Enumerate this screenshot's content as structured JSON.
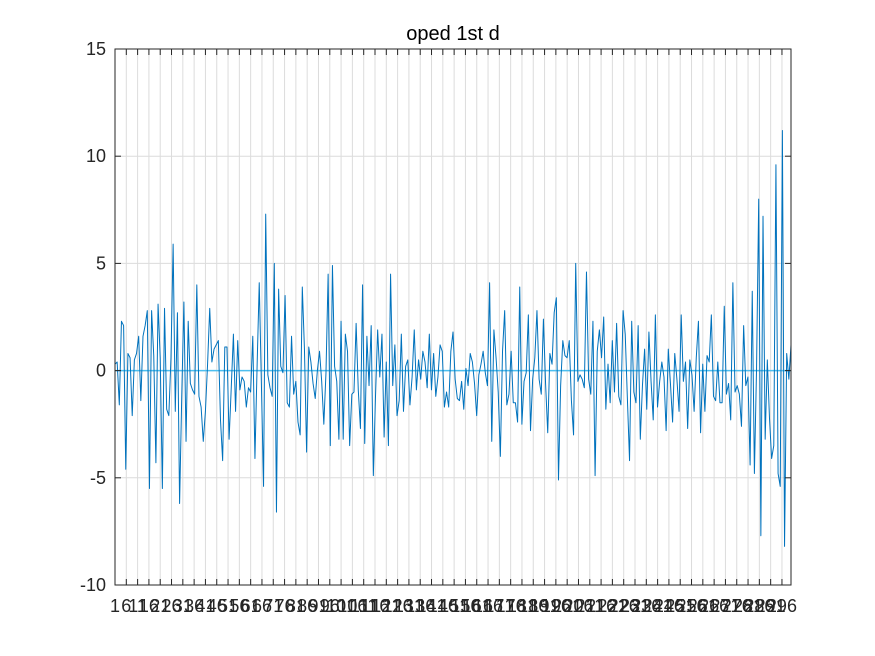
{
  "chart_data": {
    "type": "line",
    "title": "oped 1st d",
    "xlabel": "",
    "ylabel": "",
    "ylim": [
      -10,
      15
    ],
    "yticks": [
      -10,
      -5,
      0,
      5,
      10,
      15
    ],
    "xlim": [
      1,
      300
    ],
    "grid": true,
    "line_color": "#0072BD",
    "reference_line": {
      "y": 0,
      "color": "#4DBEEE"
    },
    "xtick_labels": [
      "1",
      "6",
      "11",
      "16",
      "21",
      "26",
      "31",
      "36",
      "41",
      "46",
      "51",
      "56",
      "61",
      "66",
      "71",
      "76",
      "81",
      "86",
      "91",
      "96",
      "101",
      "106",
      "111",
      "116",
      "121",
      "126",
      "131",
      "136",
      "141",
      "146",
      "151",
      "156",
      "161",
      "166",
      "171",
      "176",
      "181",
      "186",
      "191",
      "196",
      "201",
      "206",
      "211",
      "216",
      "221",
      "226",
      "231",
      "236",
      "241",
      "246",
      "251",
      "256",
      "261",
      "266",
      "271",
      "276",
      "281",
      "286",
      "291",
      "296"
    ],
    "series": [
      {
        "values": [
          0.3,
          0.4,
          -1.6,
          2.3,
          2.1,
          -4.6,
          0.8,
          0.6,
          -2.1,
          0.5,
          0.8,
          1.6,
          -1.4,
          1.6,
          2.1,
          2.8,
          -5.5,
          2.8,
          0.7,
          -4.3,
          3.1,
          0.6,
          -5.5,
          2.9,
          -1.8,
          -2.1,
          0.6,
          5.9,
          -1.9,
          2.7,
          -6.2,
          -1.2,
          3.2,
          -3.3,
          2.3,
          -0.6,
          -0.9,
          -1.1,
          4.0,
          -1.2,
          -1.7,
          -3.3,
          -1.9,
          0.3,
          2.9,
          0.4,
          1.0,
          1.2,
          1.4,
          -2.3,
          -4.2,
          1.1,
          1.1,
          -3.2,
          -0.8,
          1.7,
          -1.9,
          1.4,
          -0.9,
          -0.3,
          -0.5,
          -1.7,
          -0.8,
          -1.0,
          1.6,
          -4.1,
          0.2,
          4.1,
          -0.6,
          -5.4,
          7.3,
          -0.2,
          -0.8,
          -1.2,
          5.0,
          -6.6,
          3.8,
          0.2,
          -0.1,
          3.5,
          -1.5,
          -1.7,
          1.6,
          -1.1,
          -0.5,
          -2.4,
          -3.0,
          3.9,
          1.0,
          -3.8,
          1.1,
          0.4,
          -0.6,
          -1.3,
          0.0,
          0.9,
          -0.5,
          -2.5,
          -0.1,
          4.5,
          -3.5,
          4.9,
          0.2,
          -0.5,
          -3.2,
          2.3,
          -3.2,
          1.7,
          0.9,
          -3.5,
          -1.1,
          -1.0,
          2.2,
          -0.9,
          -2.7,
          4.0,
          -3.4,
          1.6,
          -0.7,
          2.1,
          -4.9,
          -1.2,
          1.9,
          -0.3,
          1.7,
          -3.1,
          0.4,
          -3.5,
          4.5,
          -0.7,
          1.2,
          -2.1,
          -1.4,
          1.7,
          -1.9,
          0.2,
          0.5,
          -1.6,
          -0.3,
          1.9,
          -0.9,
          0.5,
          -0.4,
          0.9,
          0.4,
          -0.8,
          1.7,
          -0.9,
          0.8,
          -1.2,
          -0.3,
          1.2,
          0.9,
          -1.7,
          -1.0,
          -1.7,
          0.9,
          1.8,
          -0.4,
          -1.3,
          -1.4,
          -0.5,
          -1.8,
          0.1,
          -0.7,
          0.8,
          0.4,
          -0.6,
          -2.1,
          -0.2,
          0.3,
          0.9,
          -0.1,
          -0.7,
          4.1,
          -3.3,
          1.9,
          0.6,
          -1.0,
          -4.0,
          0.9,
          2.8,
          -1.6,
          -1.1,
          0.9,
          -1.5,
          -1.5,
          -2.4,
          3.9,
          -2.5,
          -0.5,
          -0.1,
          2.6,
          -2.8,
          -0.4,
          0.6,
          2.8,
          -0.4,
          -1.1,
          2.4,
          -0.6,
          -2.9,
          0.8,
          0.3,
          2.7,
          3.4,
          -5.1,
          -0.7,
          1.4,
          0.7,
          0.6,
          1.4,
          -1.4,
          -3.0,
          5.0,
          -0.5,
          -0.2,
          -0.4,
          -0.8,
          4.6,
          -0.4,
          -1.1,
          2.3,
          -4.9,
          0.9,
          1.9,
          0.6,
          2.5,
          -1.8,
          0.3,
          -1.5,
          1.4,
          -1.0,
          2.2,
          -1.2,
          -1.6,
          2.8,
          1.7,
          -1.3,
          -4.2,
          2.3,
          -1.0,
          -1.5,
          2.1,
          -3.2,
          -0.7,
          1.0,
          -1.8,
          1.8,
          -0.5,
          -2.3,
          2.6,
          -1.7,
          -0.5,
          0.4,
          -0.3,
          -2.8,
          1.0,
          -0.6,
          -2.4,
          0.8,
          -0.4,
          -1.9,
          2.6,
          -0.5,
          0.4,
          -2.7,
          0.5,
          -0.2,
          -1.9,
          0.6,
          2.3,
          -2.9,
          0.3,
          -1.9,
          0.7,
          0.4,
          2.6,
          -1.2,
          -1.4,
          0.4,
          -1.5,
          -1.5,
          3.0,
          -1.1,
          -0.6,
          -2.3,
          4.1,
          -1.0,
          -0.7,
          -1.1,
          -2.6,
          2.1,
          -0.7,
          -0.3,
          -4.4,
          3.7,
          -4.8,
          0.1,
          8.0,
          -7.7,
          7.2,
          -3.2,
          0.5,
          -2.2,
          -4.1,
          -3.5,
          9.6,
          -4.8,
          -5.4,
          11.2,
          -8.2,
          0.8,
          -0.4,
          1.2
        ]
      }
    ]
  }
}
